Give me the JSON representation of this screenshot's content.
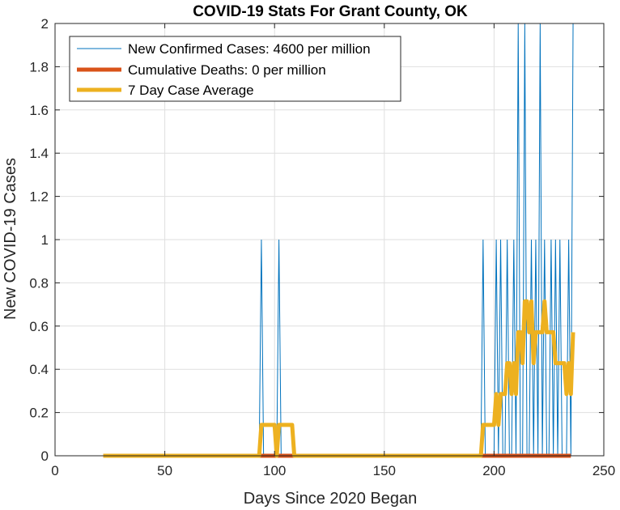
{
  "chart_data": {
    "type": "line",
    "title": "COVID-19 Stats For Grant County, OK",
    "xlabel": "Days Since 2020 Began",
    "ylabel": "New COVID-19 Cases",
    "xlim": [
      0,
      250
    ],
    "ylim": [
      0,
      2
    ],
    "xticks": [
      0,
      50,
      100,
      150,
      200,
      250
    ],
    "yticks": [
      0,
      0.2,
      0.4,
      0.6,
      0.8,
      1,
      1.2,
      1.4,
      1.6,
      1.8,
      2
    ],
    "grid": true,
    "legend_position": "top-left",
    "series": [
      {
        "name": "New Confirmed Cases: 4600 per million",
        "color": "#0072BD",
        "line_width": "thin",
        "x_start": 22,
        "y": [
          0,
          0,
          0,
          0,
          0,
          0,
          0,
          0,
          0,
          0,
          0,
          0,
          0,
          0,
          0,
          0,
          0,
          0,
          0,
          0,
          0,
          0,
          0,
          0,
          0,
          0,
          0,
          0,
          0,
          0,
          0,
          0,
          0,
          0,
          0,
          0,
          0,
          0,
          0,
          0,
          0,
          0,
          0,
          0,
          0,
          0,
          0,
          0,
          0,
          0,
          0,
          0,
          0,
          0,
          0,
          0,
          0,
          0,
          0,
          0,
          0,
          0,
          0,
          0,
          0,
          0,
          0,
          0,
          0,
          0,
          0,
          0,
          1,
          0,
          0,
          0,
          0,
          0,
          0,
          0,
          1,
          0,
          0,
          0,
          0,
          0,
          0,
          0,
          0,
          0,
          0,
          0,
          0,
          0,
          0,
          0,
          0,
          0,
          0,
          0,
          0,
          0,
          0,
          0,
          0,
          0,
          0,
          0,
          0,
          0,
          0,
          0,
          0,
          0,
          0,
          0,
          0,
          0,
          0,
          0,
          0,
          0,
          0,
          0,
          0,
          0,
          0,
          0,
          0,
          0,
          0,
          0,
          0,
          0,
          0,
          0,
          0,
          0,
          0,
          0,
          0,
          0,
          0,
          0,
          0,
          0,
          0,
          0,
          0,
          0,
          0,
          0,
          0,
          0,
          0,
          0,
          0,
          0,
          0,
          0,
          0,
          0,
          0,
          0,
          0,
          0,
          0,
          0,
          0,
          0,
          0,
          0,
          0,
          1,
          0,
          0,
          0,
          0,
          0,
          1,
          0,
          1,
          0,
          0,
          1,
          0,
          0,
          1,
          0,
          2,
          0,
          0,
          2,
          0,
          0,
          1,
          0,
          1,
          0,
          2,
          0,
          1,
          0,
          0,
          1,
          0,
          1,
          0,
          1,
          0,
          0,
          0,
          1,
          0,
          2
        ]
      },
      {
        "name": "Cumulative Deaths: 0 per million",
        "color": "#D95319",
        "line_width": "thick",
        "x_start": 22,
        "y_constant": 0,
        "x_end": 235
      },
      {
        "name": "7 Day Case Average",
        "color": "#EDB120",
        "line_width": "thick",
        "method": "7-day rolling average of new confirmed cases"
      }
    ]
  }
}
